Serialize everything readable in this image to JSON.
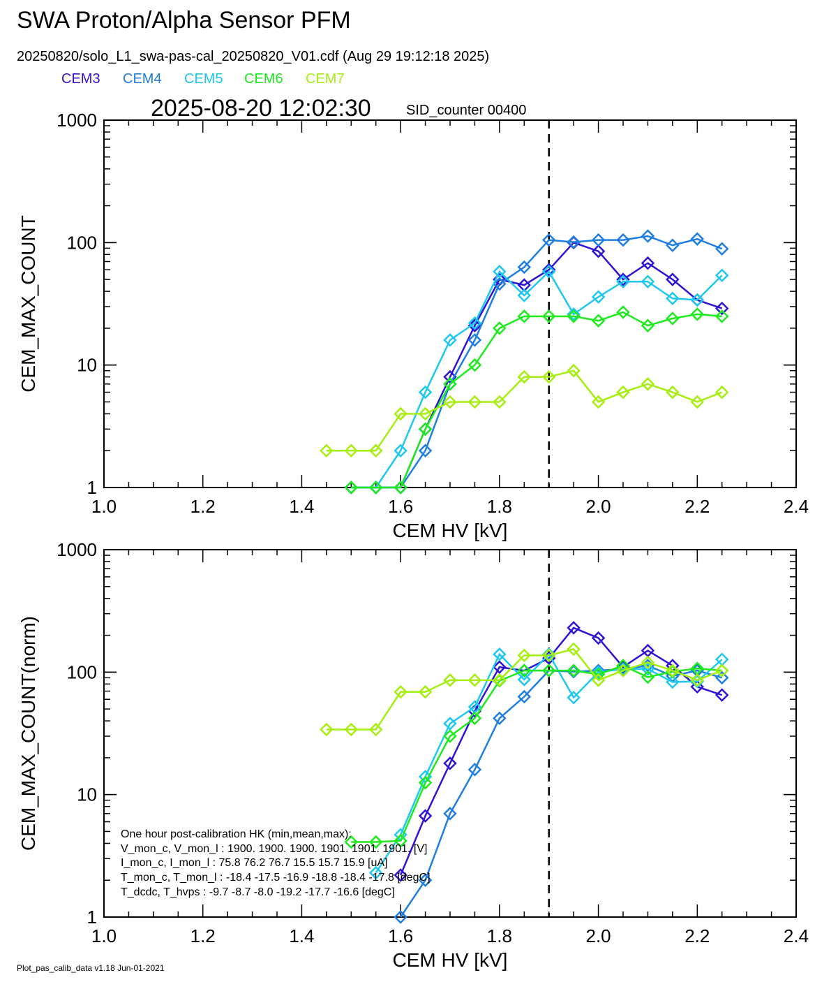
{
  "header": {
    "title": "SWA Proton/Alpha Sensor PFM",
    "file_line": "20250820/solo_L1_swa-pas-cal_20250820_V01.cdf  (Aug 29 19:12:18 2025)",
    "timestamp": "2025-08-20 12:02:30",
    "sid_counter": "SID_counter 00400"
  },
  "legend": [
    {
      "name": "CEM3",
      "color": "#2e14d4"
    },
    {
      "name": "CEM4",
      "color": "#1e7ee2"
    },
    {
      "name": "CEM5",
      "color": "#1ec8f0"
    },
    {
      "name": "CEM6",
      "color": "#1eea1e"
    },
    {
      "name": "CEM7",
      "color": "#a6ee10"
    }
  ],
  "footer": "Plot_pas_calib_data v1.18 Jun-01-2021",
  "hk_text": [
    "One hour post-calibration HK (min,mean,max):",
    "V_mon_c, V_mon_l :   1900.  1900.  1900.       1901.  1901.  1901. [V]",
    "I_mon_c,  I_mon_l :     75.8   76.2   76.7         15.5   15.7   15.9  [uA]",
    "T_mon_c, T_mon_l :   -18.4  -17.5  -16.9        -18.8  -18.4  -17.8  [degC]",
    "T_dcdc,    T_hvps :      -9.7   -8.7   -8.0          -19.2  -17.7  -16.6  [degC]"
  ],
  "chart_data": [
    {
      "type": "line",
      "xlabel": "CEM HV [kV]",
      "ylabel": "CEM_MAX_COUNT",
      "xlim": [
        1.0,
        2.4
      ],
      "ylim": [
        1,
        1000
      ],
      "yscale": "log",
      "x_ticks": [
        "1.0",
        "1.2",
        "1.4",
        "1.6",
        "1.8",
        "2.0",
        "2.2",
        "2.4"
      ],
      "y_ticks": [
        "1",
        "10",
        "100",
        "1000"
      ],
      "vline_x": 1.9,
      "grid": false,
      "series": [
        {
          "name": "CEM3",
          "color": "#2e14d4",
          "x": [
            1.5,
            1.55,
            1.6,
            1.65,
            1.7,
            1.75,
            1.8,
            1.85,
            1.9,
            1.95,
            2.0,
            2.05,
            2.1,
            2.15,
            2.2,
            2.25
          ],
          "values": [
            1,
            1,
            1,
            3,
            8,
            21,
            50,
            45,
            60,
            100,
            85,
            50,
            68,
            50,
            34,
            29
          ]
        },
        {
          "name": "CEM4",
          "color": "#1e7ee2",
          "x": [
            1.5,
            1.55,
            1.6,
            1.65,
            1.7,
            1.75,
            1.8,
            1.85,
            1.9,
            1.95,
            2.0,
            2.05,
            2.1,
            2.15,
            2.2,
            2.25
          ],
          "values": [
            1,
            1,
            1,
            2,
            7,
            16,
            46,
            63,
            105,
            101,
            105,
            105,
            113,
            95,
            107,
            89
          ]
        },
        {
          "name": "CEM5",
          "color": "#1ec8f0",
          "x": [
            1.5,
            1.55,
            1.6,
            1.65,
            1.7,
            1.75,
            1.8,
            1.85,
            1.9,
            1.95,
            2.0,
            2.05,
            2.1,
            2.15,
            2.2,
            2.25
          ],
          "values": [
            1,
            1,
            2,
            6,
            16,
            22,
            58,
            37,
            58,
            26,
            36,
            48,
            48,
            35,
            34,
            54
          ]
        },
        {
          "name": "CEM6",
          "color": "#1eea1e",
          "x": [
            1.5,
            1.55,
            1.6,
            1.65,
            1.7,
            1.75,
            1.8,
            1.85,
            1.9,
            1.95,
            2.0,
            2.05,
            2.1,
            2.15,
            2.2,
            2.25
          ],
          "values": [
            1,
            1,
            1,
            3,
            7,
            10,
            20,
            25,
            25,
            25,
            23,
            27,
            21,
            24,
            26,
            25
          ]
        },
        {
          "name": "CEM7",
          "color": "#a6ee10",
          "x": [
            1.45,
            1.5,
            1.55,
            1.6,
            1.65,
            1.7,
            1.75,
            1.8,
            1.85,
            1.9,
            1.95,
            2.0,
            2.05,
            2.1,
            2.15,
            2.2,
            2.25
          ],
          "values": [
            2,
            2,
            2,
            4,
            4,
            5,
            5,
            5,
            8,
            8,
            9,
            5,
            6,
            7,
            6,
            5,
            6
          ]
        }
      ]
    },
    {
      "type": "line",
      "xlabel": "CEM HV [kV]",
      "ylabel": "CEM_MAX_COUNT(norm)",
      "xlim": [
        1.0,
        2.4
      ],
      "ylim": [
        1,
        1000
      ],
      "yscale": "log",
      "x_ticks": [
        "1.0",
        "1.2",
        "1.4",
        "1.6",
        "1.8",
        "2.0",
        "2.2",
        "2.4"
      ],
      "y_ticks": [
        "1",
        "10",
        "100",
        "1000"
      ],
      "vline_x": 1.9,
      "grid": false,
      "series": [
        {
          "name": "CEM3",
          "color": "#2e14d4",
          "x": [
            1.6,
            1.65,
            1.7,
            1.75,
            1.8,
            1.85,
            1.9,
            1.95,
            2.0,
            2.05,
            2.1,
            2.15,
            2.2,
            2.25
          ],
          "values": [
            2.2,
            6.7,
            18,
            48,
            110,
            103,
            130,
            230,
            190,
            110,
            150,
            113,
            76,
            65
          ]
        },
        {
          "name": "CEM4",
          "color": "#1e7ee2",
          "x": [
            1.6,
            1.65,
            1.7,
            1.75,
            1.8,
            1.85,
            1.9,
            1.95,
            2.0,
            2.05,
            2.1,
            2.15,
            2.2,
            2.25
          ],
          "values": [
            1,
            2,
            7,
            16,
            42,
            63,
            103,
            101,
            103,
            106,
            113,
            93,
            103,
            90
          ]
        },
        {
          "name": "CEM5",
          "color": "#1ec8f0",
          "x": [
            1.55,
            1.6,
            1.65,
            1.7,
            1.75,
            1.8,
            1.85,
            1.9,
            1.95,
            2.0,
            2.05,
            2.1,
            2.15,
            2.2,
            2.25
          ],
          "values": [
            2.3,
            4.7,
            14,
            38,
            52,
            140,
            87,
            140,
            62,
            100,
            106,
            106,
            83,
            84,
            127
          ]
        },
        {
          "name": "CEM6",
          "color": "#1eea1e",
          "x": [
            1.5,
            1.55,
            1.6,
            1.65,
            1.7,
            1.75,
            1.8,
            1.85,
            1.9,
            1.95,
            2.0,
            2.05,
            2.1,
            2.15,
            2.2,
            2.25
          ],
          "values": [
            4.1,
            4.1,
            4.2,
            12.5,
            30,
            42,
            85,
            103,
            103,
            103,
            96,
            113,
            91,
            101,
            107,
            103
          ]
        },
        {
          "name": "CEM7",
          "color": "#a6ee10",
          "x": [
            1.45,
            1.5,
            1.55,
            1.6,
            1.65,
            1.7,
            1.75,
            1.8,
            1.85,
            1.9,
            1.95,
            2.0,
            2.05,
            2.1,
            2.15,
            2.2,
            2.25
          ],
          "values": [
            34,
            34,
            34,
            69,
            69,
            86,
            86,
            86,
            137,
            137,
            154,
            86,
            103,
            120,
            103,
            86,
            103
          ]
        }
      ]
    }
  ]
}
